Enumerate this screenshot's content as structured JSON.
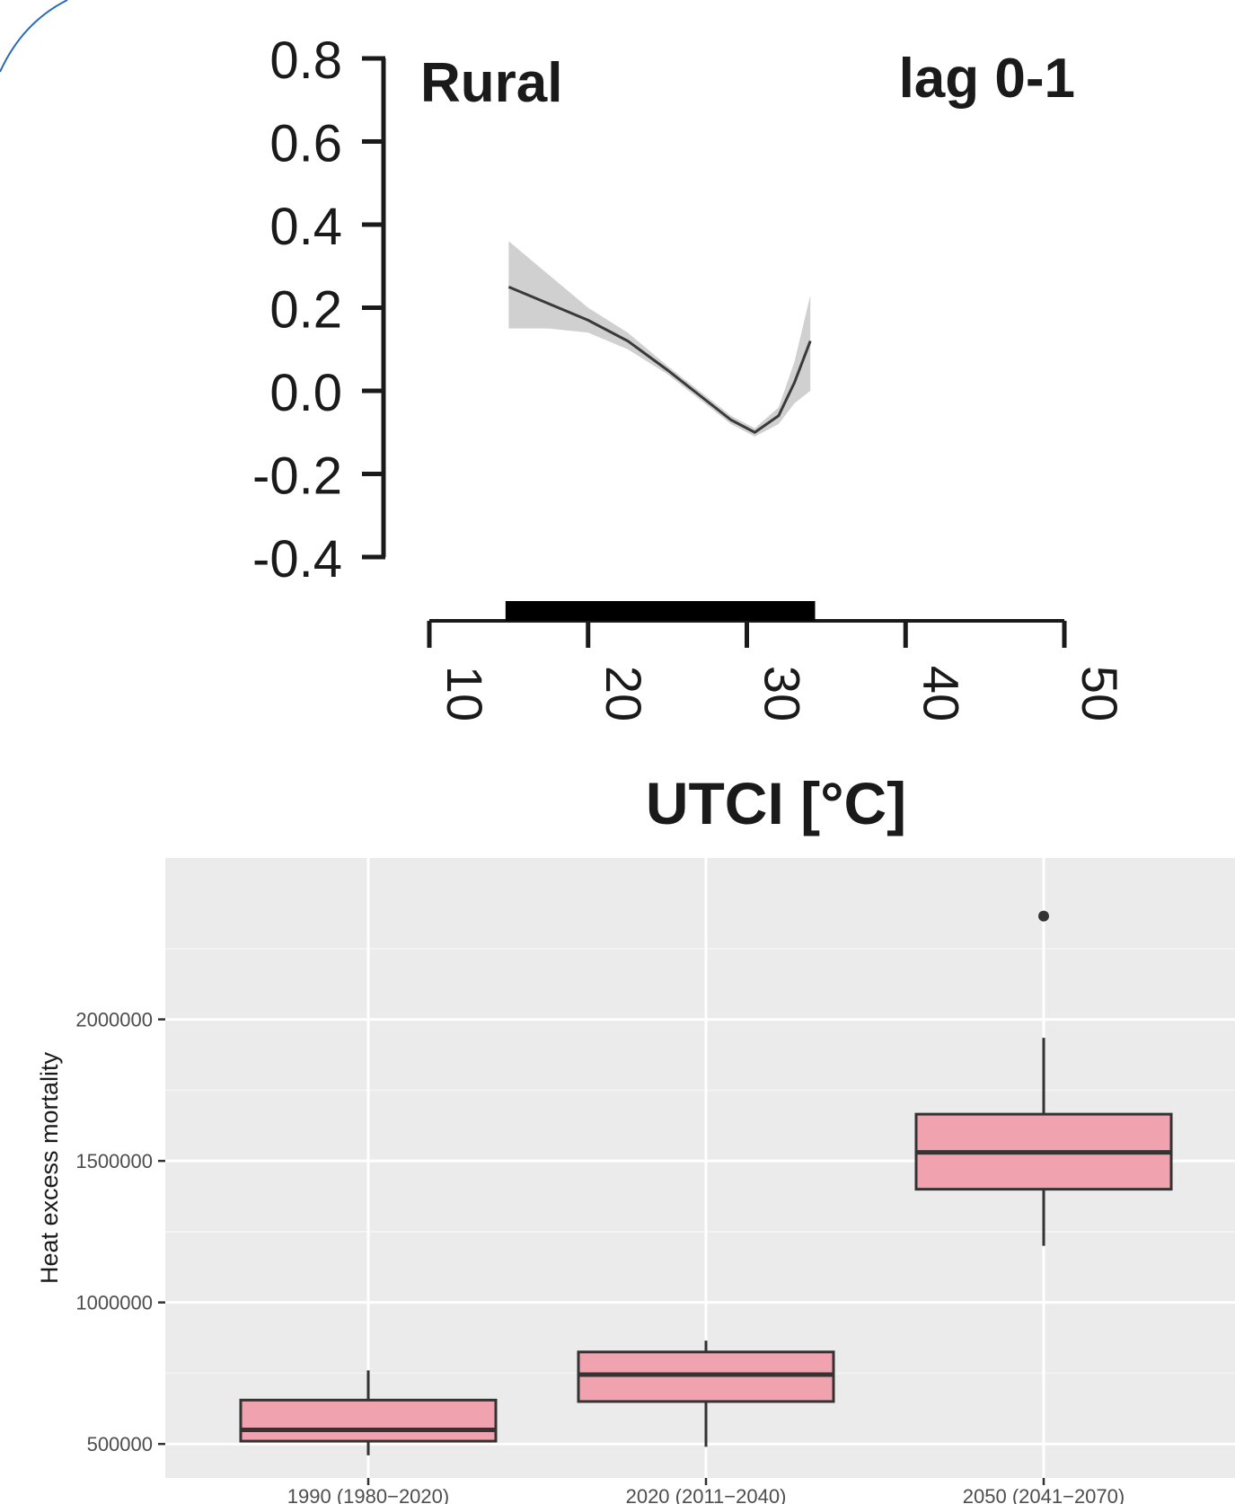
{
  "chart_data": [
    {
      "type": "line",
      "panel_label": "Rural",
      "annotation": "lag 0-1",
      "xlabel": "UTCI [°C]",
      "ylabel": "",
      "xlim": [
        10,
        50
      ],
      "ylim": [
        -0.4,
        0.8
      ],
      "x_ticks": [
        "10",
        "20",
        "30",
        "40",
        "50"
      ],
      "y_ticks": [
        "0.8",
        "0.6",
        "0.4",
        "0.2",
        "0.0",
        "-0.2",
        "-0.4"
      ],
      "x_tick_values": [
        10,
        20,
        30,
        40,
        50
      ],
      "y_tick_values": [
        0.8,
        0.6,
        0.4,
        0.2,
        0.0,
        -0.2,
        -0.4
      ],
      "rug_range": [
        14.8,
        34.3
      ],
      "series": [
        {
          "x": [
            15.0,
            17.5,
            20.0,
            22.5,
            25.0,
            27.0,
            29.0,
            30.5,
            32.0,
            33.0,
            34.0
          ],
          "y": [
            0.25,
            0.21,
            0.17,
            0.12,
            0.05,
            -0.01,
            -0.07,
            -0.1,
            -0.06,
            0.02,
            0.12
          ],
          "lower": [
            0.15,
            0.15,
            0.14,
            0.1,
            0.04,
            -0.02,
            -0.08,
            -0.11,
            -0.08,
            -0.03,
            0.0
          ],
          "upper": [
            0.36,
            0.28,
            0.2,
            0.14,
            0.06,
            0.0,
            -0.06,
            -0.09,
            -0.04,
            0.07,
            0.23
          ]
        }
      ]
    },
    {
      "type": "box",
      "title": "",
      "xlabel": "",
      "ylabel": "Heat excess mortality",
      "ylim": [
        380000,
        2570000
      ],
      "y_ticks": [
        "2000000",
        "1500000",
        "1000000",
        "500000"
      ],
      "y_tick_values": [
        2000000,
        1500000,
        1000000,
        500000
      ],
      "categories": [
        "1990 (1980−2020)",
        "2020 (2011−2040)",
        "2050 (2041−2070)"
      ],
      "boxes": [
        {
          "whisker_low": 460000,
          "q1": 510000,
          "median": 550000,
          "q3": 655000,
          "whisker_high": 760000,
          "outliers": []
        },
        {
          "whisker_low": 490000,
          "q1": 650000,
          "median": 745000,
          "q3": 825000,
          "whisker_high": 865000,
          "outliers": []
        },
        {
          "whisker_low": 1200000,
          "q1": 1400000,
          "median": 1530000,
          "q3": 1665000,
          "whisker_high": 1935000,
          "outliers": [
            2365000
          ]
        }
      ],
      "fill_color": "#f0a3ae",
      "panel_color": "#ebebeb",
      "grid": true
    }
  ]
}
